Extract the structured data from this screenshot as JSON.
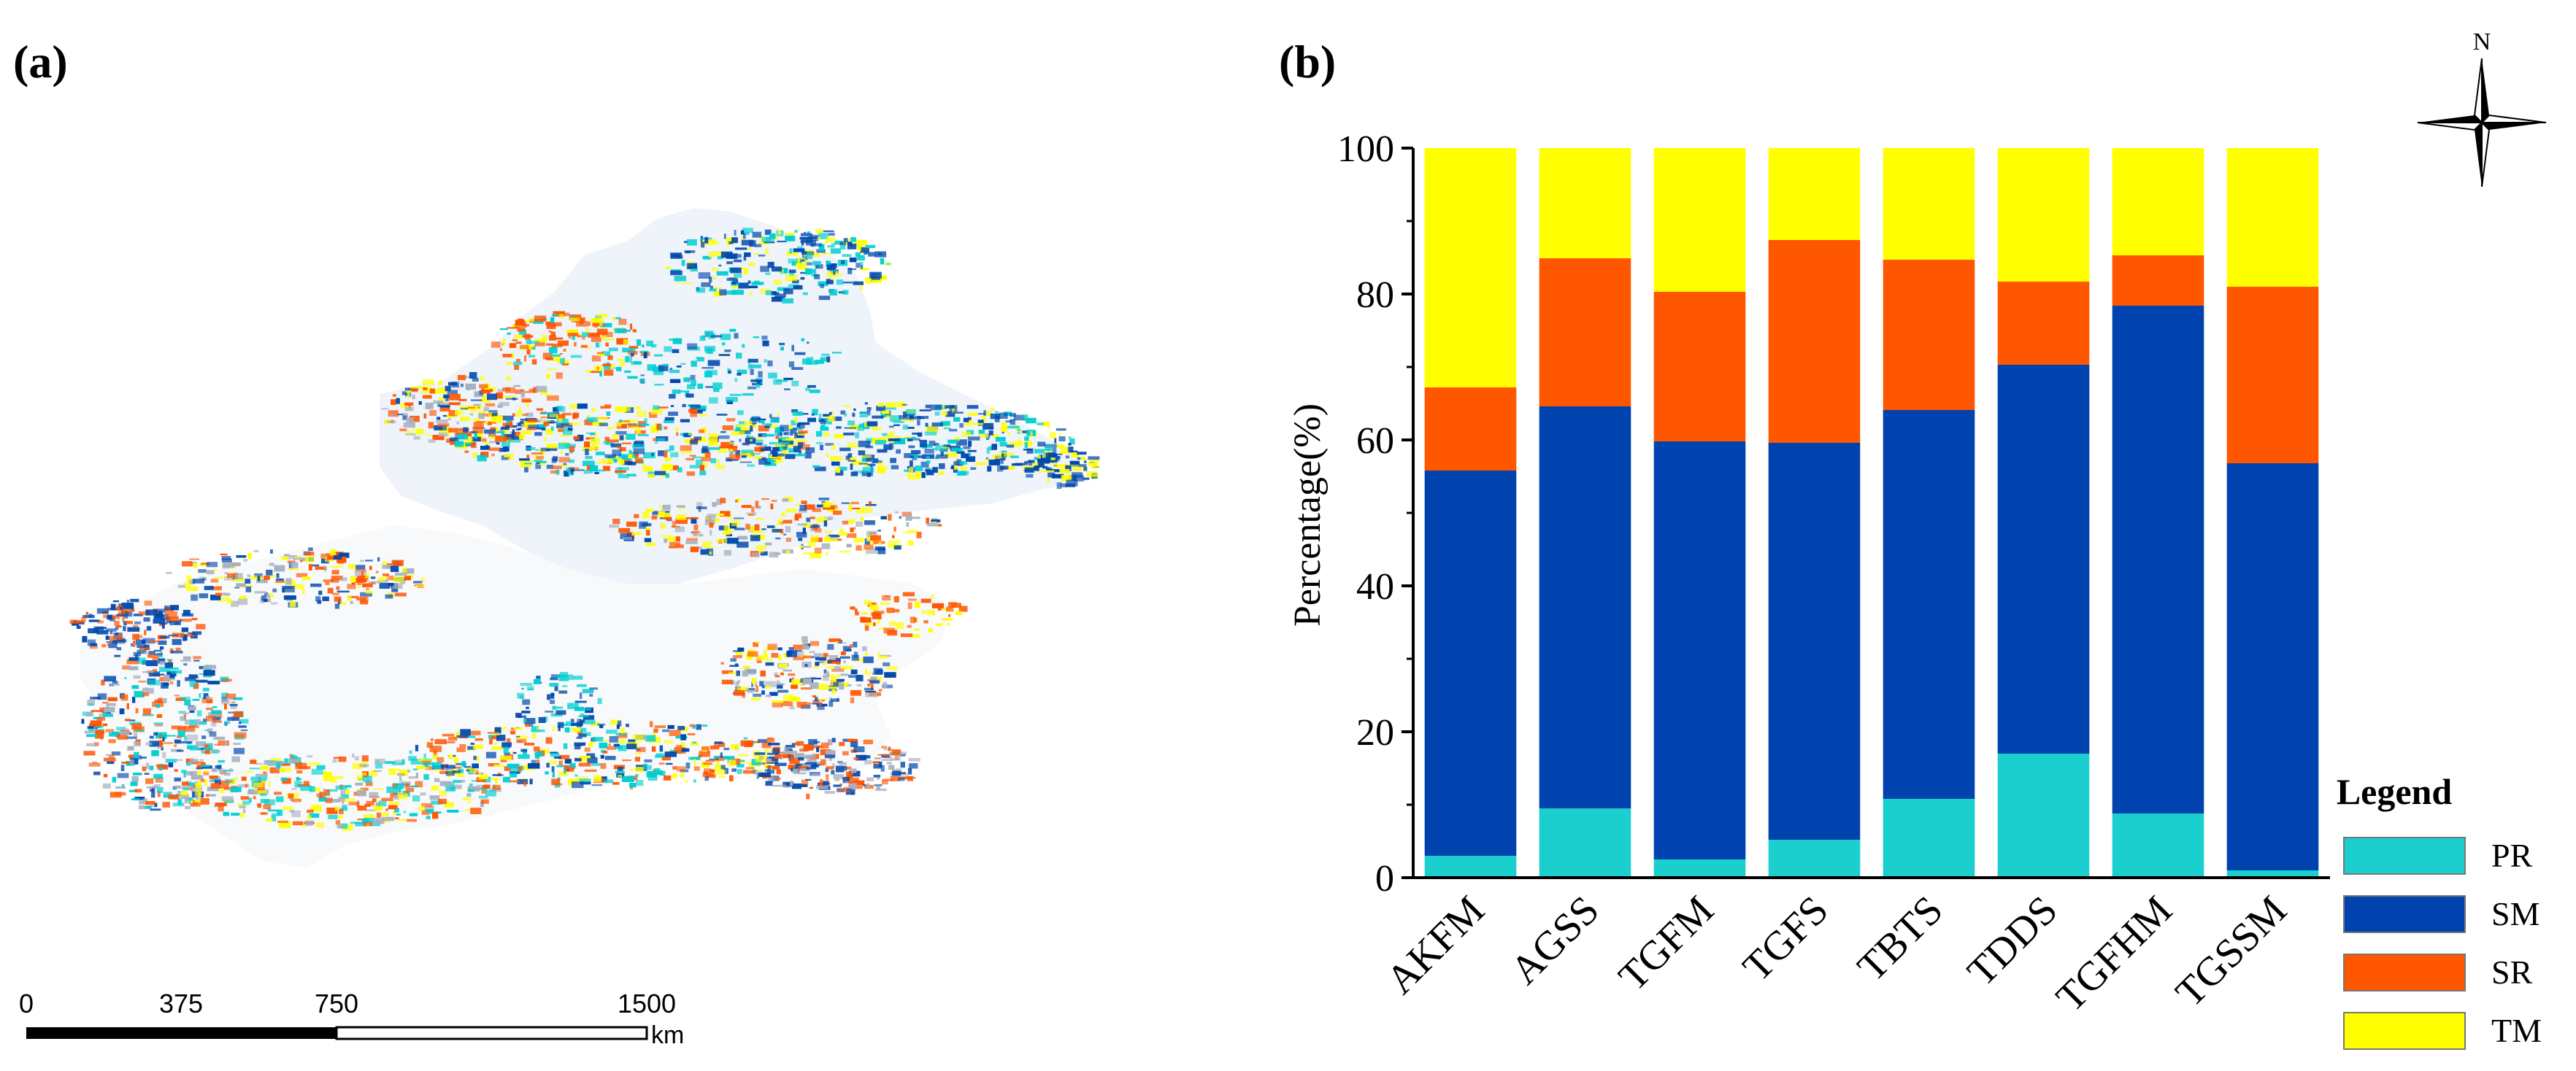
{
  "panels": {
    "a": "(a)",
    "b": "(b)"
  },
  "map": {
    "scale_ticks": [
      "0",
      "375",
      "750",
      "1500"
    ],
    "scale_unit": "km",
    "north_label": "N",
    "colors": {
      "PR": "#00CED1",
      "SM": "#0047AB",
      "SR": "#FF5500",
      "TM": "#FFFF00",
      "other": "#A8B0C0"
    }
  },
  "chart_data": {
    "type": "bar",
    "stacked": true,
    "categories": [
      "AKFM",
      "AGSS",
      "TGFM",
      "TGFS",
      "TBTS",
      "TDDS",
      "TGFHM",
      "TGSSM"
    ],
    "series": [
      {
        "name": "PR",
        "color": "#1CCFCF",
        "values": [
          3,
          9.5,
          2.5,
          5.2,
          10.8,
          17,
          8.8,
          1
        ]
      },
      {
        "name": "SM",
        "color": "#0042AE",
        "values": [
          52.8,
          55.1,
          57.3,
          54.4,
          53.3,
          53.3,
          69.6,
          55.8
        ]
      },
      {
        "name": "SR",
        "color": "#FF5600",
        "values": [
          11.4,
          20.3,
          20.5,
          27.8,
          20.6,
          11.4,
          6.9,
          24.2
        ]
      },
      {
        "name": "TM",
        "color": "#FFFF00",
        "values": [
          32.8,
          15.1,
          19.7,
          12.6,
          15.3,
          18.3,
          14.7,
          19
        ]
      }
    ],
    "ylabel": "Percentage(%)",
    "xlabel": "",
    "ylim": [
      0,
      100
    ],
    "yticks": [
      "0",
      "20",
      "40",
      "60",
      "80",
      "100"
    ],
    "legend_title": "Legend",
    "legend_position": "bottom-right",
    "grid": false
  }
}
